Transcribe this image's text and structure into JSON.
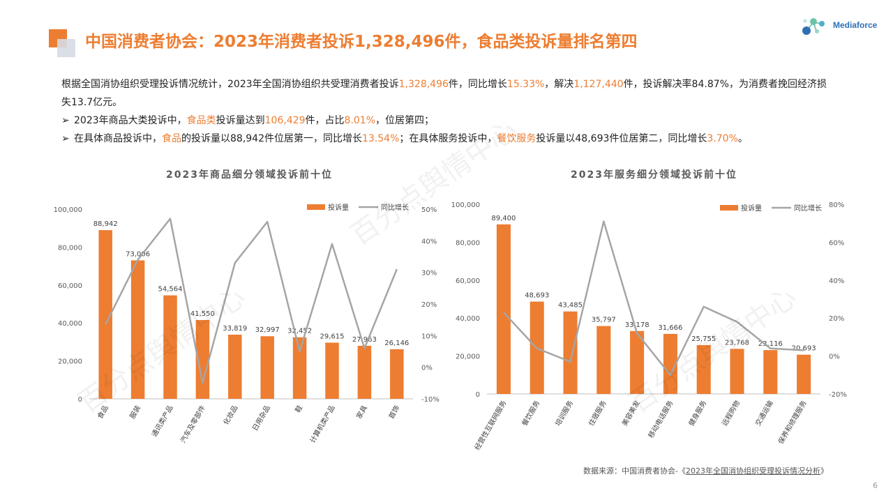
{
  "header": {
    "title": "中国消费者协会：2023年消费者投诉1,328,496件，食品类投诉量排名第四",
    "brand": "Mediaforce"
  },
  "summary": {
    "p1_a": "根据全国消协组织受理投诉情况统计，2023年全国消协组织共受理消费者投诉",
    "p1_b": "1,328,496",
    "p1_c": "件，同比增长",
    "p1_d": "15.33%",
    "p1_e": "，解决",
    "p1_f": "1,127,440",
    "p1_g": "件，投诉解决率84.87%，为消费者挽回经济损失13.7亿元。",
    "b1_a": "2023年商品大类投诉中，",
    "b1_b": "食品类",
    "b1_c": "投诉量达到",
    "b1_d": "106,429",
    "b1_e": "件，占比",
    "b1_f": "8.01%",
    "b1_g": "，位居第四；",
    "b2_a": "在具体商品投诉中，",
    "b2_b": "食品",
    "b2_c": "的投诉量以",
    "b2_d": "88,942件",
    "b2_e": "位居第一，同比增长",
    "b2_f": "13.54%",
    "b2_g": "；在具体服务投诉中，",
    "b2_h": "餐饮服务",
    "b2_i": "投诉量以",
    "b2_j": "48,693件",
    "b2_k": "位居第二，同比增长",
    "b2_l": "3.70%",
    "b2_m": "。"
  },
  "watermark": "百分点舆情中心",
  "source": {
    "label": "数据来源：中国消费者协会-《",
    "doc": "2023年全国消协组织受理投诉情况分析",
    "end": "》"
  },
  "page_number": "6",
  "colors": {
    "accent": "#ED7D31",
    "line": "#A5A5A5",
    "brand": "#2E6FB5"
  },
  "chart_data": [
    {
      "type": "bar",
      "title": "2023年商品细分领域投诉前十位",
      "categories": [
        "食品",
        "服装",
        "通讯类产品",
        "汽车及零部件",
        "化妆品",
        "日用杂品",
        "鞋",
        "计算机类产品",
        "家具",
        "首饰"
      ],
      "series": [
        {
          "name": "投诉量",
          "type": "bar",
          "axis": "left",
          "values": [
            88942,
            73006,
            54564,
            41550,
            33819,
            32997,
            32452,
            29615,
            27963,
            26146
          ],
          "labels": [
            "88,942",
            "73,006",
            "54,564",
            "41,550",
            "33,819",
            "32,997",
            "32,452",
            "29,615",
            "27,963",
            "26,146"
          ]
        },
        {
          "name": "同比增长",
          "type": "line",
          "axis": "right",
          "values": [
            13.5,
            34,
            47,
            -5,
            33,
            46,
            5,
            39,
            6,
            31
          ]
        }
      ],
      "ylim": [
        0,
        100000
      ],
      "yticks": [
        "0",
        "20,000",
        "40,000",
        "60,000",
        "80,000",
        "100,000"
      ],
      "y2lim": [
        -10,
        50
      ],
      "y2ticks": [
        "-10%",
        "0%",
        "10%",
        "20%",
        "30%",
        "40%",
        "50%"
      ],
      "legend": "top-right"
    },
    {
      "type": "bar",
      "title": "2023年服务细分领域投诉前十位",
      "categories": [
        "经营性互联网服务",
        "餐饮服务",
        "培训服务",
        "住宿服务",
        "美容美发",
        "移动电话服务",
        "健身服务",
        "远程购物",
        "交通运输",
        "保养和修理服务"
      ],
      "series": [
        {
          "name": "投诉量",
          "type": "bar",
          "axis": "left",
          "values": [
            89400,
            48693,
            43485,
            35797,
            33178,
            31666,
            25755,
            23768,
            23116,
            20693
          ],
          "labels": [
            "89,400",
            "48,693",
            "43,485",
            "35,797",
            "33,178",
            "31,666",
            "25,755",
            "23,768",
            "23,116",
            "20,693"
          ]
        },
        {
          "name": "同比增长",
          "type": "line",
          "axis": "right",
          "values": [
            23,
            4,
            -3,
            71,
            12,
            -10,
            26,
            18,
            4,
            3
          ]
        }
      ],
      "ylim": [
        0,
        100000
      ],
      "yticks": [
        "0",
        "20,000",
        "40,000",
        "60,000",
        "80,000",
        "100,000"
      ],
      "y2lim": [
        -20,
        80
      ],
      "y2ticks": [
        "-20%",
        "0%",
        "20%",
        "40%",
        "60%",
        "80%"
      ],
      "legend": "top-right"
    }
  ]
}
